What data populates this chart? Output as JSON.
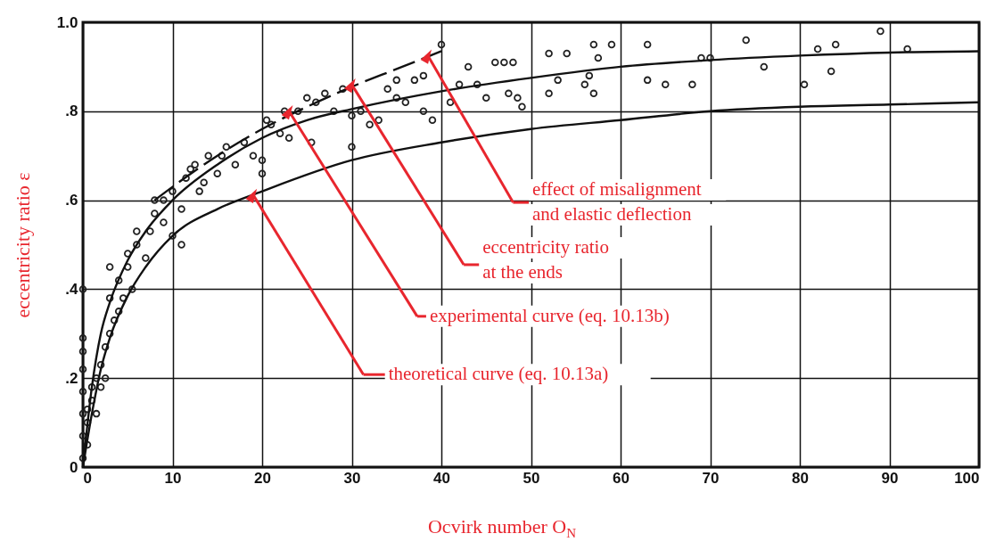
{
  "chart_data": {
    "type": "scatter",
    "xlabel": "Ocvirk number O$_{N}$",
    "ylabel": "eccentricity ratio ε",
    "xlim": [
      0,
      100
    ],
    "ylim": [
      0,
      1
    ],
    "xticks": [
      0,
      10,
      20,
      30,
      40,
      50,
      60,
      70,
      80,
      90,
      100
    ],
    "yticks": [
      0,
      {
        "value": 0.2,
        "label": ".2"
      },
      {
        "value": 0.4,
        "label": ".4"
      },
      {
        "value": 0.6,
        "label": ".6"
      },
      {
        "value": 0.8,
        "label": ".8"
      },
      {
        "value": 1,
        "label": "1.0"
      }
    ],
    "grid": true,
    "series": [
      {
        "marker": "circle",
        "color": "#222222",
        "x": [
          0,
          0,
          0,
          0,
          0,
          0,
          0,
          0,
          0.5,
          0.5,
          0.5,
          1,
          1,
          1.5,
          1.5,
          2,
          2,
          2.5,
          2.5,
          3,
          3,
          3,
          3.5,
          4,
          4,
          4.5,
          5,
          5,
          5.5,
          6,
          6,
          7,
          7.5,
          8,
          8,
          9,
          9,
          10,
          10,
          11,
          11,
          11.5,
          12,
          12.5,
          13,
          13.5,
          14,
          15,
          15.5,
          16,
          17,
          18,
          19,
          20,
          20,
          20.5,
          21,
          22,
          22.5,
          23,
          24,
          25,
          25.5,
          26,
          27,
          28,
          29,
          30,
          30,
          31,
          32,
          33,
          34,
          35,
          35,
          36,
          37,
          38,
          38,
          39,
          40,
          41,
          42,
          43,
          44,
          45,
          46,
          47,
          47.5,
          48,
          48.5,
          49,
          52,
          52,
          53,
          54,
          56,
          56.5,
          57,
          57,
          57.5,
          59,
          63,
          63,
          65,
          68,
          69,
          70,
          74,
          76,
          80.5,
          82,
          83.5,
          84,
          89,
          92
        ],
        "values": [
          0.02,
          0.07,
          0.12,
          0.17,
          0.22,
          0.26,
          0.29,
          0.4,
          0.05,
          0.1,
          0.13,
          0.15,
          0.18,
          0.12,
          0.2,
          0.18,
          0.23,
          0.27,
          0.2,
          0.3,
          0.38,
          0.45,
          0.33,
          0.35,
          0.42,
          0.38,
          0.45,
          0.48,
          0.4,
          0.5,
          0.53,
          0.47,
          0.53,
          0.6,
          0.57,
          0.55,
          0.6,
          0.52,
          0.62,
          0.5,
          0.58,
          0.65,
          0.67,
          0.68,
          0.62,
          0.64,
          0.7,
          0.66,
          0.7,
          0.72,
          0.68,
          0.73,
          0.7,
          0.69,
          0.66,
          0.78,
          0.77,
          0.75,
          0.8,
          0.74,
          0.8,
          0.83,
          0.73,
          0.82,
          0.84,
          0.8,
          0.85,
          0.79,
          0.72,
          0.8,
          0.77,
          0.78,
          0.85,
          0.87,
          0.83,
          0.82,
          0.87,
          0.88,
          0.8,
          0.78,
          0.95,
          0.82,
          0.86,
          0.9,
          0.86,
          0.83,
          0.91,
          0.91,
          0.84,
          0.91,
          0.83,
          0.81,
          0.84,
          0.93,
          0.87,
          0.93,
          0.86,
          0.88,
          0.95,
          0.84,
          0.92,
          0.95,
          0.95,
          0.87,
          0.86,
          0.86,
          0.92,
          0.92,
          0.96,
          0.9,
          0.86,
          0.94,
          0.89,
          0.95,
          0.98,
          0.94
        ]
      },
      {
        "type": "line",
        "color": "#111111",
        "line_style": "solid",
        "x": [
          0,
          1,
          2,
          3,
          5,
          7,
          10,
          15,
          20,
          30,
          40,
          50,
          60,
          70,
          80,
          90,
          100
        ],
        "values": [
          0,
          0.12,
          0.22,
          0.29,
          0.385,
          0.45,
          0.52,
          0.58,
          0.62,
          0.69,
          0.73,
          0.76,
          0.78,
          0.8,
          0.81,
          0.815,
          0.82
        ]
      },
      {
        "type": "line",
        "color": "#111111",
        "line_style": "solid",
        "x": [
          0,
          1,
          2,
          3,
          5,
          7,
          10,
          15,
          20,
          25,
          30,
          40,
          50,
          60,
          70,
          80,
          90,
          100
        ],
        "values": [
          0,
          0.18,
          0.3,
          0.37,
          0.465,
          0.53,
          0.6,
          0.68,
          0.74,
          0.78,
          0.805,
          0.845,
          0.875,
          0.9,
          0.915,
          0.925,
          0.932,
          0.935
        ]
      },
      {
        "type": "line",
        "color": "#111111",
        "line_style": "dashed",
        "x": [
          8,
          10,
          15,
          20,
          25,
          30,
          35,
          40
        ],
        "values": [
          0.6,
          0.63,
          0.7,
          0.76,
          0.81,
          0.855,
          0.895,
          0.935
        ]
      }
    ],
    "annotations": [
      {
        "text": "effect of misalignment\nand elastic deflection",
        "x": 38.5,
        "y": 0.925
      },
      {
        "text": "eccentricity ratio\nat the ends",
        "x": 30,
        "y": 0.86
      },
      {
        "text": "experimental curve (eq. 10.13b)",
        "x": 23,
        "y": 0.8
      },
      "theoretical curve (eq. 10.13a)"
    ]
  }
}
